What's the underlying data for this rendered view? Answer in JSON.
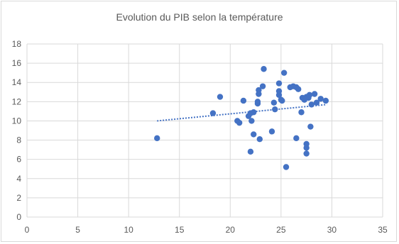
{
  "chart_data": {
    "type": "scatter",
    "title": "Evolution du PIB selon la température",
    "xlabel": "",
    "ylabel": "",
    "xlim": [
      0,
      35
    ],
    "ylim": [
      0,
      18
    ],
    "x_ticks": [
      0,
      5,
      10,
      15,
      20,
      25,
      30,
      35
    ],
    "y_ticks": [
      0,
      2,
      4,
      6,
      8,
      10,
      12,
      14,
      16,
      18
    ],
    "grid": true,
    "legend": "none",
    "point_color": "#4472c4",
    "trendline": {
      "type": "linear",
      "style": "dotted",
      "color": "#4472c4",
      "from": [
        12.8,
        10.0
      ],
      "to": [
        29.5,
        11.7
      ]
    },
    "points": [
      [
        12.8,
        8.2
      ],
      [
        18.3,
        10.8
      ],
      [
        19.0,
        12.5
      ],
      [
        20.7,
        10.0
      ],
      [
        20.9,
        9.8
      ],
      [
        21.3,
        12.1
      ],
      [
        21.8,
        10.5
      ],
      [
        22.0,
        6.8
      ],
      [
        22.0,
        10.8
      ],
      [
        22.1,
        10.0
      ],
      [
        22.3,
        10.9
      ],
      [
        22.3,
        8.6
      ],
      [
        22.7,
        11.8
      ],
      [
        22.7,
        12.0
      ],
      [
        22.8,
        12.8
      ],
      [
        22.8,
        13.2
      ],
      [
        22.9,
        8.1
      ],
      [
        23.2,
        13.6
      ],
      [
        23.3,
        15.4
      ],
      [
        24.1,
        8.9
      ],
      [
        24.3,
        11.9
      ],
      [
        24.4,
        11.2
      ],
      [
        24.8,
        13.1
      ],
      [
        24.8,
        12.7
      ],
      [
        24.8,
        13.9
      ],
      [
        25.0,
        12.2
      ],
      [
        25.1,
        12.1
      ],
      [
        25.3,
        15.0
      ],
      [
        25.5,
        5.2
      ],
      [
        25.9,
        13.5
      ],
      [
        26.2,
        13.6
      ],
      [
        26.5,
        8.2
      ],
      [
        26.5,
        13.5
      ],
      [
        26.7,
        13.3
      ],
      [
        27.0,
        10.9
      ],
      [
        27.1,
        12.4
      ],
      [
        27.3,
        12.2
      ],
      [
        27.5,
        12.5
      ],
      [
        27.5,
        7.6
      ],
      [
        27.5,
        7.2
      ],
      [
        27.5,
        6.6
      ],
      [
        27.7,
        12.4
      ],
      [
        27.8,
        12.7
      ],
      [
        27.9,
        9.4
      ],
      [
        28.0,
        11.7
      ],
      [
        28.3,
        12.8
      ],
      [
        28.5,
        11.9
      ],
      [
        28.9,
        12.3
      ],
      [
        29.4,
        12.1
      ]
    ]
  }
}
